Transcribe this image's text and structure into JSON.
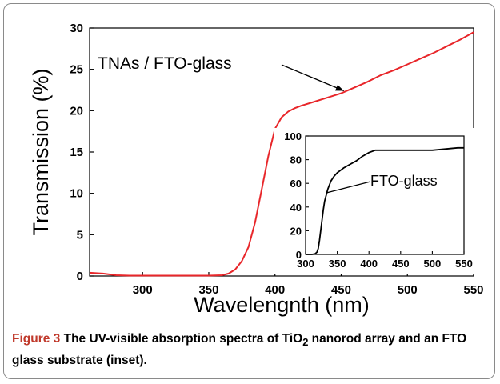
{
  "chart_data": [
    {
      "type": "line",
      "xlabel": "Wavelengnth (nm)",
      "ylabel": "Transmission (%)",
      "xlim": [
        260,
        550
      ],
      "ylim": [
        0,
        30
      ],
      "x_ticks": [
        300,
        350,
        400,
        450,
        500,
        550
      ],
      "y_ticks": [
        0,
        5,
        10,
        15,
        20,
        25,
        30
      ],
      "grid": false,
      "series": [
        {
          "name": "TNAs / FTO-glass",
          "color": "#e8262a",
          "x": [
            260,
            270,
            280,
            290,
            300,
            310,
            320,
            330,
            340,
            350,
            360,
            365,
            370,
            375,
            380,
            385,
            390,
            395,
            400,
            405,
            410,
            415,
            420,
            430,
            440,
            450,
            460,
            470,
            480,
            490,
            500,
            510,
            520,
            530,
            540,
            550
          ],
          "y": [
            0.4,
            0.3,
            0.1,
            0.05,
            0.05,
            0.05,
            0.05,
            0.05,
            0.05,
            0.05,
            0.1,
            0.3,
            0.8,
            1.8,
            3.5,
            6.5,
            10.5,
            14.5,
            17.8,
            19.2,
            19.9,
            20.3,
            20.6,
            21.1,
            21.6,
            22.1,
            22.8,
            23.5,
            24.3,
            24.9,
            25.6,
            26.3,
            27.0,
            27.8,
            28.6,
            29.5
          ]
        }
      ],
      "annotations": [
        "TNAs / FTO-glass"
      ]
    },
    {
      "type": "line",
      "inset": true,
      "xlim": [
        300,
        550
      ],
      "ylim": [
        0,
        100
      ],
      "x_ticks": [
        300,
        350,
        400,
        450,
        500,
        550
      ],
      "y_ticks": [
        0,
        20,
        40,
        60,
        80,
        100
      ],
      "grid": false,
      "series": [
        {
          "name": "FTO-glass",
          "color": "#000000",
          "x": [
            300,
            310,
            315,
            318,
            320,
            322,
            325,
            328,
            330,
            335,
            340,
            345,
            350,
            360,
            370,
            380,
            390,
            400,
            410,
            420,
            450,
            480,
            500,
            520,
            540,
            550
          ],
          "y": [
            0,
            0,
            0.5,
            2,
            5,
            12,
            25,
            38,
            45,
            55,
            62,
            66,
            69,
            73,
            76,
            79,
            83,
            86,
            88,
            88,
            88,
            88,
            88,
            89,
            90,
            90
          ]
        }
      ],
      "annotations": [
        "FTO-glass"
      ]
    }
  ],
  "caption": {
    "label": "Figure 3",
    "text_pre": " The UV-visible absorption spectra of TiO",
    "subscript": "2",
    "text_post": " nanorod array and an FTO glass substrate (inset)."
  }
}
